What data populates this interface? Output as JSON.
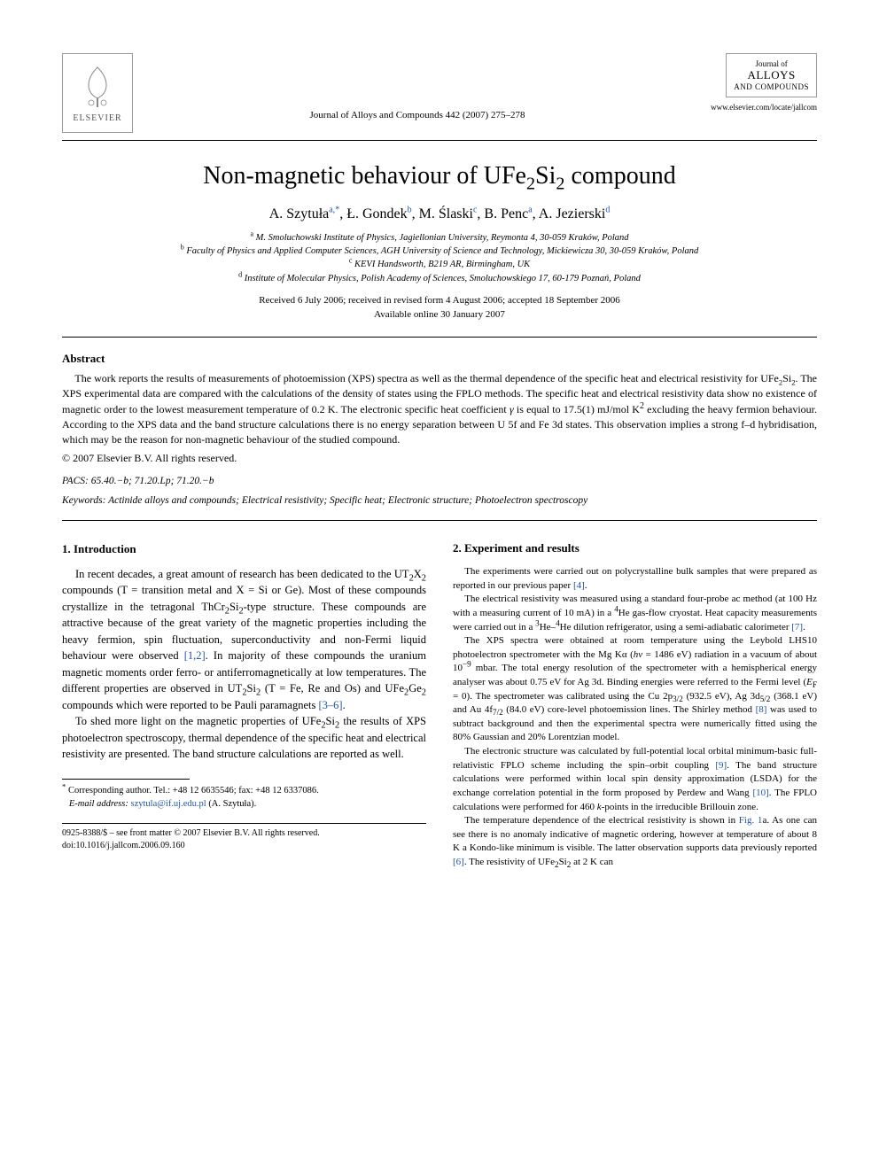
{
  "header": {
    "publisher_name": "ELSEVIER",
    "journal_reference": "Journal of Alloys and Compounds 442 (2007) 275–278",
    "journal_logo_line1": "Journal of",
    "journal_logo_line2": "ALLOYS",
    "journal_logo_line3": "AND COMPOUNDS",
    "journal_url": "www.elsevier.com/locate/jallcom"
  },
  "title_parts": {
    "pre": "Non-magnetic behaviour of UFe",
    "sub1": "2",
    "mid": "Si",
    "sub2": "2",
    "post": " compound"
  },
  "authors": [
    {
      "name": "A. Szytuła",
      "aff": "a,",
      "star": "*"
    },
    {
      "name": "Ł. Gondek",
      "aff": "b"
    },
    {
      "name": "M. Ślaski",
      "aff": "c"
    },
    {
      "name": "B. Penc",
      "aff": "a"
    },
    {
      "name": "A. Jezierski",
      "aff": "d"
    }
  ],
  "affiliations": [
    {
      "sup": "a",
      "text": "M. Smoluchowski Institute of Physics, Jagiellonian University, Reymonta 4, 30-059 Kraków, Poland"
    },
    {
      "sup": "b",
      "text": "Faculty of Physics and Applied Computer Sciences, AGH University of Science and Technology, Mickiewicza 30, 30-059 Kraków, Poland"
    },
    {
      "sup": "c",
      "text": "KEVI Handsworth, B219 AR, Birmingham, UK"
    },
    {
      "sup": "d",
      "text": "Institute of Molecular Physics, Polish Academy of Sciences, Smoluchowskiego 17, 60-179 Poznań, Poland"
    }
  ],
  "dates": {
    "received": "Received 6 July 2006; received in revised form 4 August 2006; accepted 18 September 2006",
    "available": "Available online 30 January 2007"
  },
  "abstract": {
    "heading": "Abstract",
    "body_html": "The work reports the results of measurements of photoemission (XPS) spectra as well as the thermal dependence of the specific heat and electrical resistivity for UFe<sub>2</sub>Si<sub>2</sub>. The XPS experimental data are compared with the calculations of the density of states using the FPLO methods. The specific heat and electrical resistivity data show no existence of magnetic order to the lowest measurement temperature of 0.2 K. The electronic specific heat coefficient <i>γ</i> is equal to 17.5(1) mJ/mol K<sup>2</sup> excluding the heavy fermion behaviour. According to the XPS data and the band structure calculations there is no energy separation between U 5f and Fe 3d states. This observation implies a strong f–d hybridisation, which may be the reason for non-magnetic behaviour of the studied compound.",
    "copyright": "© 2007 Elsevier B.V. All rights reserved."
  },
  "pacs": {
    "label": "PACS:",
    "codes": " 65.40.−b; 71.20.Lp; 71.20.−b"
  },
  "keywords": {
    "label": "Keywords:",
    "text": " Actinide alloys and compounds; Electrical resistivity; Specific heat; Electronic structure; Photoelectron spectroscopy"
  },
  "sections": {
    "intro_heading": "1.  Introduction",
    "intro_p1_html": "In recent decades, a great amount of research has been dedicated to the UT<sub>2</sub>X<sub>2</sub> compounds (T = transition metal and X = Si or Ge). Most of these compounds crystallize in the tetragonal ThCr<sub>2</sub>Si<sub>2</sub>-type structure. These compounds are attractive because of the great variety of the magnetic properties including the heavy fermion, spin fluctuation, superconductivity and non-Fermi liquid behaviour were observed <span class=\"ref-link\">[1,2]</span>. In majority of these compounds the uranium magnetic moments order ferro- or antiferromagnetically at low temperatures. The different properties are observed in UT<sub>2</sub>Si<sub>2</sub> (T = Fe, Re and Os) and UFe<sub>2</sub>Ge<sub>2</sub> compounds which were reported to be Pauli paramagnets <span class=\"ref-link\">[3–6]</span>.",
    "intro_p2_html": "To shed more light on the magnetic properties of UFe<sub>2</sub>Si<sub>2</sub> the results of XPS photoelectron spectroscopy, thermal dependence of the specific heat and electrical resistivity are presented. The band structure calculations are reported as well.",
    "exp_heading": "2.  Experiment and results",
    "exp_p1_html": "The experiments were carried out on polycrystalline bulk samples that were prepared as reported in our previous paper <span class=\"ref-link\">[4]</span>.",
    "exp_p2_html": "The electrical resistivity was measured using a standard four-probe ac method (at 100 Hz with a measuring current of 10 mA) in a <sup>4</sup>He gas-flow cryostat. Heat capacity measurements were carried out in a <sup>3</sup>He–<sup>4</sup>He dilution refrigerator, using a semi-adiabatic calorimeter <span class=\"ref-link\">[7]</span>.",
    "exp_p3_html": "The XPS spectra were obtained at room temperature using the Leybold LHS10 photoelectron spectrometer with the Mg Kα (<i>hν</i> = 1486 eV) radiation in a vacuum of about 10<sup>−9</sup> mbar. The total energy resolution of the spectrometer with a hemispherical energy analyser was about 0.75 eV for Ag 3d. Binding energies were referred to the Fermi level (<i>E</i><sub>F</sub> = 0). The spectrometer was calibrated using the Cu 2p<sub>3/2</sub> (932.5 eV), Ag 3d<sub>5/2</sub> (368.1 eV) and Au 4f<sub>7/2</sub> (84.0 eV) core-level photoemission lines. The Shirley method <span class=\"ref-link\">[8]</span> was used to subtract background and then the experimental spectra were numerically fitted using the 80% Gaussian and 20% Lorentzian model.",
    "exp_p4_html": "The electronic structure was calculated by full-potential local orbital minimum-basic full-relativistic FPLO scheme including the spin–orbit coupling <span class=\"ref-link\">[9]</span>. The band structure calculations were performed within local spin density approximation (LSDA) for the exchange correlation potential in the form proposed by Perdew and Wang <span class=\"ref-link\">[10]</span>. The FPLO calculations were performed for 460 <i>k</i>-points in the irreducible Brillouin zone.",
    "exp_p5_html": "The temperature dependence of the electrical resistivity is shown in <span class=\"ref-link\">Fig. 1</span>a. As one can see there is no anomaly indicative of magnetic ordering, however at temperature of about 8 K a Kondo-like minimum is visible. The latter observation supports data previously reported <span class=\"ref-link\">[6]</span>. The resistivity of UFe<sub>2</sub>Si<sub>2</sub> at 2 K can"
  },
  "footnote": {
    "corresponding": "Corresponding author. Tel.: +48 12 6635546; fax: +48 12 6337086.",
    "email_label": "E-mail address:",
    "email": "szytula@if.uj.edu.pl",
    "email_author": "(A. Szytuła)."
  },
  "footer": {
    "line1": "0925-8388/$ – see front matter © 2007 Elsevier B.V. All rights reserved.",
    "line2": "doi:10.1016/j.jallcom.2006.09.160"
  },
  "colors": {
    "link": "#2255aa",
    "text": "#000000",
    "background": "#ffffff",
    "rule": "#000000"
  },
  "typography": {
    "body_fontsize_pt": 12.5,
    "title_fontsize_pt": 28,
    "small_fontsize_pt": 11,
    "footnote_fontsize_pt": 10.5
  }
}
